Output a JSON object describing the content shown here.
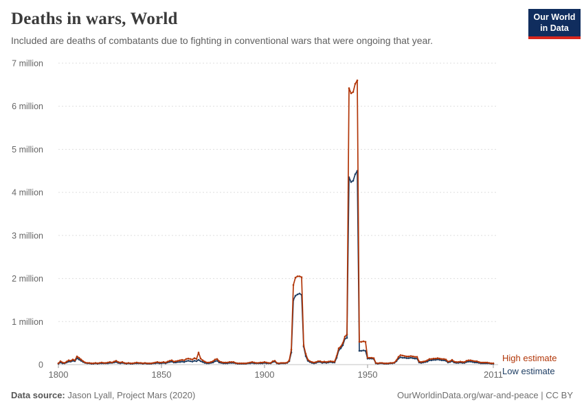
{
  "header": {
    "title": "Deaths in wars, World",
    "subtitle": "Included are deaths of combatants due to fighting in conventional wars that were ongoing that year.",
    "logo": {
      "line1": "Our World",
      "line2": "in Data",
      "bg_color": "#102d5e",
      "accent_color": "#d7261d"
    }
  },
  "chart_data": {
    "type": "line",
    "title": "Deaths in wars, World",
    "xlabel": "",
    "ylabel": "",
    "xlim": [
      1800,
      2011
    ],
    "ylim": [
      0,
      7
    ],
    "grid": "dashed-horizontal",
    "legend_position": "right-of-line-ends",
    "x_ticks": [
      1800,
      1850,
      1900,
      1950,
      2011
    ],
    "y_ticks": [
      {
        "value": 0,
        "label": "0"
      },
      {
        "value": 1,
        "label": "1 million"
      },
      {
        "value": 2,
        "label": "2 million"
      },
      {
        "value": 3,
        "label": "3 million"
      },
      {
        "value": 4,
        "label": "4 million"
      },
      {
        "value": 5,
        "label": "5 million"
      },
      {
        "value": 6,
        "label": "6 million"
      },
      {
        "value": 7,
        "label": "7 million"
      }
    ],
    "x_start": 1800,
    "x_step": 1,
    "unit": "million deaths",
    "series": [
      {
        "name": "High estimate",
        "color": "#B13507",
        "values": [
          0.03,
          0.08,
          0.05,
          0.04,
          0.07,
          0.1,
          0.09,
          0.12,
          0.1,
          0.19,
          0.16,
          0.12,
          0.08,
          0.05,
          0.04,
          0.04,
          0.03,
          0.03,
          0.04,
          0.03,
          0.04,
          0.05,
          0.04,
          0.04,
          0.05,
          0.06,
          0.05,
          0.07,
          0.09,
          0.06,
          0.05,
          0.06,
          0.04,
          0.03,
          0.04,
          0.03,
          0.03,
          0.04,
          0.05,
          0.04,
          0.04,
          0.03,
          0.04,
          0.03,
          0.03,
          0.03,
          0.04,
          0.05,
          0.06,
          0.05,
          0.05,
          0.06,
          0.05,
          0.07,
          0.09,
          0.1,
          0.07,
          0.08,
          0.09,
          0.1,
          0.11,
          0.1,
          0.13,
          0.14,
          0.13,
          0.12,
          0.15,
          0.13,
          0.28,
          0.14,
          0.1,
          0.07,
          0.05,
          0.05,
          0.06,
          0.08,
          0.12,
          0.13,
          0.08,
          0.06,
          0.05,
          0.05,
          0.05,
          0.06,
          0.06,
          0.06,
          0.04,
          0.03,
          0.03,
          0.03,
          0.03,
          0.03,
          0.04,
          0.05,
          0.06,
          0.05,
          0.04,
          0.04,
          0.05,
          0.05,
          0.06,
          0.05,
          0.04,
          0.04,
          0.08,
          0.09,
          0.04,
          0.03,
          0.04,
          0.04,
          0.04,
          0.05,
          0.1,
          0.35,
          1.85,
          2.02,
          2.05,
          2.05,
          2.03,
          0.45,
          0.25,
          0.12,
          0.08,
          0.06,
          0.05,
          0.06,
          0.08,
          0.08,
          0.06,
          0.07,
          0.06,
          0.07,
          0.08,
          0.07,
          0.07,
          0.2,
          0.38,
          0.42,
          0.5,
          0.65,
          0.7,
          6.42,
          6.3,
          6.33,
          6.52,
          6.6,
          0.53,
          0.53,
          0.54,
          0.53,
          0.16,
          0.16,
          0.16,
          0.15,
          0.04,
          0.03,
          0.04,
          0.04,
          0.03,
          0.03,
          0.03,
          0.04,
          0.04,
          0.05,
          0.1,
          0.18,
          0.22,
          0.21,
          0.2,
          0.19,
          0.19,
          0.2,
          0.19,
          0.18,
          0.18,
          0.07,
          0.06,
          0.07,
          0.08,
          0.1,
          0.13,
          0.13,
          0.14,
          0.14,
          0.15,
          0.14,
          0.13,
          0.13,
          0.12,
          0.07,
          0.08,
          0.11,
          0.07,
          0.06,
          0.06,
          0.07,
          0.06,
          0.06,
          0.09,
          0.1,
          0.1,
          0.09,
          0.08,
          0.08,
          0.06,
          0.05,
          0.05,
          0.05,
          0.05,
          0.04,
          0.03,
          0.03
        ]
      },
      {
        "name": "Low estimate",
        "color": "#1D3D63",
        "values": [
          0.02,
          0.05,
          0.03,
          0.03,
          0.05,
          0.07,
          0.07,
          0.09,
          0.08,
          0.15,
          0.12,
          0.09,
          0.06,
          0.04,
          0.03,
          0.03,
          0.02,
          0.02,
          0.03,
          0.02,
          0.03,
          0.03,
          0.03,
          0.03,
          0.03,
          0.04,
          0.04,
          0.05,
          0.06,
          0.04,
          0.03,
          0.04,
          0.03,
          0.02,
          0.03,
          0.02,
          0.02,
          0.03,
          0.03,
          0.03,
          0.03,
          0.02,
          0.03,
          0.02,
          0.02,
          0.02,
          0.03,
          0.03,
          0.04,
          0.03,
          0.03,
          0.04,
          0.03,
          0.05,
          0.06,
          0.07,
          0.05,
          0.05,
          0.06,
          0.06,
          0.07,
          0.06,
          0.08,
          0.09,
          0.08,
          0.07,
          0.09,
          0.08,
          0.11,
          0.08,
          0.06,
          0.04,
          0.03,
          0.03,
          0.04,
          0.05,
          0.08,
          0.09,
          0.05,
          0.04,
          0.03,
          0.03,
          0.03,
          0.04,
          0.04,
          0.04,
          0.03,
          0.02,
          0.02,
          0.02,
          0.02,
          0.02,
          0.03,
          0.03,
          0.04,
          0.03,
          0.03,
          0.03,
          0.03,
          0.03,
          0.04,
          0.03,
          0.03,
          0.03,
          0.06,
          0.07,
          0.03,
          0.02,
          0.03,
          0.03,
          0.03,
          0.04,
          0.08,
          0.28,
          1.5,
          1.6,
          1.63,
          1.65,
          1.62,
          0.42,
          0.2,
          0.09,
          0.06,
          0.04,
          0.03,
          0.04,
          0.06,
          0.06,
          0.04,
          0.05,
          0.04,
          0.05,
          0.06,
          0.05,
          0.05,
          0.16,
          0.33,
          0.38,
          0.45,
          0.6,
          0.62,
          4.35,
          4.24,
          4.27,
          4.42,
          4.5,
          0.32,
          0.32,
          0.33,
          0.32,
          0.14,
          0.14,
          0.14,
          0.13,
          0.03,
          0.02,
          0.03,
          0.03,
          0.02,
          0.02,
          0.02,
          0.03,
          0.03,
          0.04,
          0.08,
          0.14,
          0.17,
          0.16,
          0.16,
          0.15,
          0.15,
          0.16,
          0.15,
          0.14,
          0.14,
          0.05,
          0.04,
          0.05,
          0.06,
          0.07,
          0.1,
          0.1,
          0.11,
          0.11,
          0.12,
          0.11,
          0.1,
          0.1,
          0.09,
          0.05,
          0.06,
          0.08,
          0.05,
          0.04,
          0.04,
          0.05,
          0.04,
          0.04,
          0.06,
          0.07,
          0.07,
          0.06,
          0.05,
          0.05,
          0.04,
          0.03,
          0.03,
          0.03,
          0.03,
          0.03,
          0.02,
          0.02
        ]
      }
    ]
  },
  "footer": {
    "source_label": "Data source:",
    "source_value": " Jason Lyall, Project Mars (2020)",
    "license": "OurWorldinData.org/war-and-peace | CC BY"
  }
}
